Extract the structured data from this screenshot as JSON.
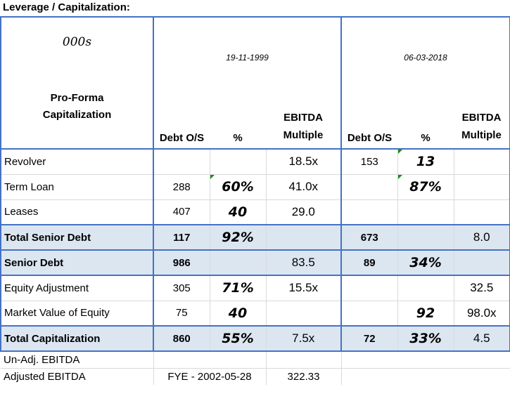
{
  "title": "Leverage / Capitalization:",
  "header": {
    "units": "000s",
    "date1": "19-11-1999",
    "date2": "06-03-2018",
    "section": "Pro-Forma Capitalization",
    "col_debt": "Debt O/S",
    "col_pct": "%",
    "col_ebitda_1": "EBITDA",
    "col_ebitda_2": "Multiple"
  },
  "rows": [
    {
      "label": "Revolver",
      "d1": "",
      "p1": "",
      "m1": "18.5x",
      "d2": "153",
      "p2": "13",
      "m2": ""
    },
    {
      "label": "Term Loan",
      "d1": "288",
      "p1": "60%",
      "m1": "41.0x",
      "d2": "",
      "p2": "87%",
      "m2": ""
    },
    {
      "label": "Leases",
      "d1": "407",
      "p1": "40",
      "m1": "29.0",
      "d2": "",
      "p2": "",
      "m2": ""
    },
    {
      "label": "Total Senior Debt",
      "d1": "117",
      "p1": "92%",
      "m1": "",
      "d2": "673",
      "p2": "",
      "m2": "8.0"
    },
    {
      "label": "Senior Debt",
      "d1": "986",
      "p1": "",
      "m1": "83.5",
      "d2": "89",
      "p2": "34%",
      "m2": ""
    },
    {
      "label": "Equity Adjustment",
      "d1": "305",
      "p1": "71%",
      "m1": "15.5x",
      "d2": "",
      "p2": "",
      "m2": "32.5"
    },
    {
      "label": "Market Value of Equity",
      "d1": "75",
      "p1": "40",
      "m1": "",
      "d2": "",
      "p2": "92",
      "m2": "98.0x"
    },
    {
      "label": "Total Capitalization",
      "d1": "860",
      "p1": "55%",
      "m1": "7.5x",
      "d2": "72",
      "p2": "33%",
      "m2": "4.5"
    }
  ],
  "footer": {
    "unadj_label": "Un-Adj. EBITDA",
    "adj_label": "Adjusted EBITDA",
    "fye": "FYE - 2002-05-28",
    "adj_value": "322.33"
  },
  "colors": {
    "accent_border": "#4472c4",
    "shade": "#dce6f1",
    "comment_marker": "#1a8a1a"
  }
}
